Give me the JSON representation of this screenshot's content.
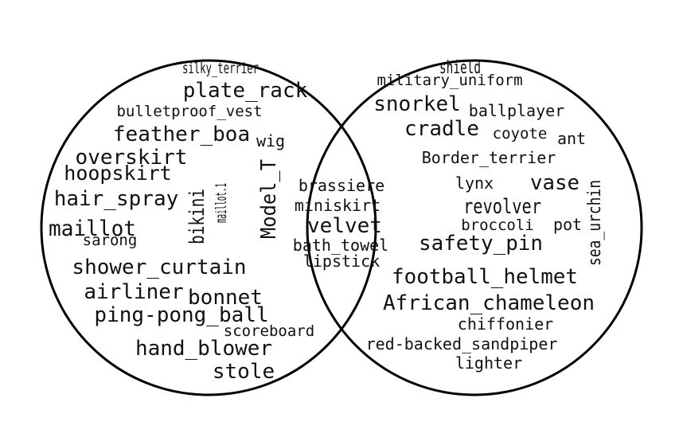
{
  "diagram": {
    "type": "venn",
    "stroke_color": "#000000",
    "text_color": "#111111",
    "left_only": [
      "silky_terrier",
      "plate_rack",
      "bulletproof_vest",
      "feather_boa",
      "wig",
      "overskirt",
      "hoopskirt",
      "hair_spray",
      "maillot",
      "sarong",
      "bikini",
      "maillot.1",
      "Model_T",
      "shower_curtain",
      "airliner",
      "bonnet",
      "ping-pong_ball",
      "scoreboard",
      "hand_blower",
      "stole"
    ],
    "intersection": [
      "brassiere",
      "miniskirt",
      "velvet",
      "bath_towel",
      "lipstick"
    ],
    "right_only": [
      "shield",
      "military_uniform",
      "snorkel",
      "ballplayer",
      "cradle",
      "coyote",
      "ant",
      "Border_terrier",
      "sea_urchin",
      "lynx",
      "vase",
      "revolver",
      "broccoli",
      "pot",
      "safety_pin",
      "football_helmet",
      "African_chameleon",
      "chiffonier",
      "red-backed_sandpiper",
      "lighter"
    ]
  }
}
